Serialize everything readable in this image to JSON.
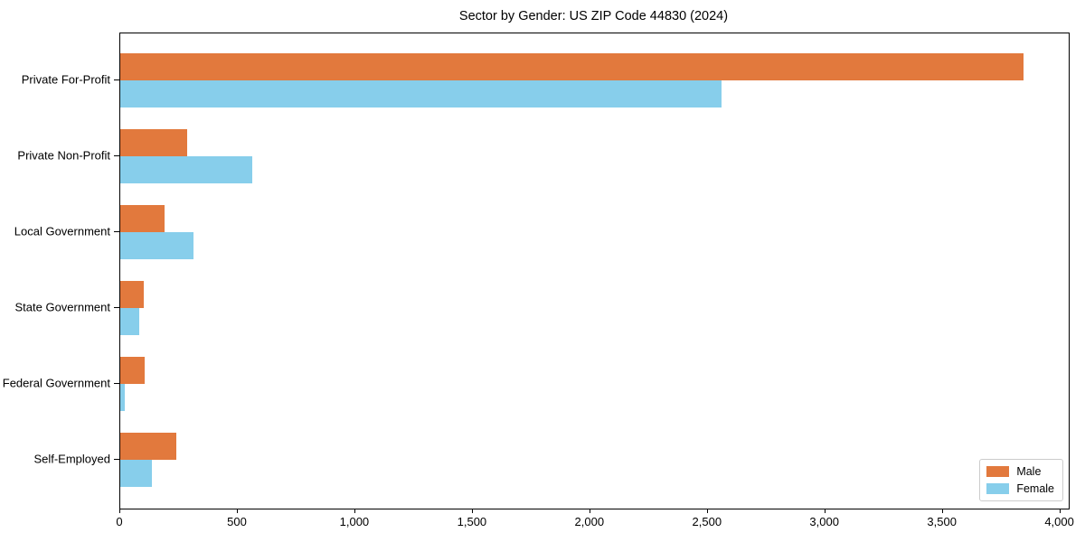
{
  "title": "Sector by Gender: US ZIP Code 44830 (2024)",
  "chart_data": {
    "type": "bar",
    "orientation": "horizontal",
    "title": "Sector by Gender: US ZIP Code 44830 (2024)",
    "categories": [
      "Private For-Profit",
      "Private Non-Profit",
      "Local Government",
      "State Government",
      "Federal Government",
      "Self-Employed"
    ],
    "series": [
      {
        "name": "Male",
        "color": "#e2793d",
        "values": [
          3845,
          285,
          190,
          100,
          105,
          240
        ]
      },
      {
        "name": "Female",
        "color": "#87ceeb",
        "values": [
          2560,
          560,
          310,
          80,
          20,
          135
        ]
      }
    ],
    "xlabel": "",
    "ylabel": "",
    "xlim": [
      0,
      4036
    ],
    "xticks": [
      0,
      500,
      1000,
      1500,
      2000,
      2500,
      3000,
      3500,
      4000
    ],
    "xtick_labels": [
      "0",
      "500",
      "1,000",
      "1,500",
      "2,000",
      "2,500",
      "3,000",
      "3,500",
      "4,000"
    ],
    "grid": false,
    "legend_position": "lower right"
  },
  "legend": {
    "items": [
      {
        "label": "Male",
        "color": "#e2793d"
      },
      {
        "label": "Female",
        "color": "#87ceeb"
      }
    ]
  }
}
